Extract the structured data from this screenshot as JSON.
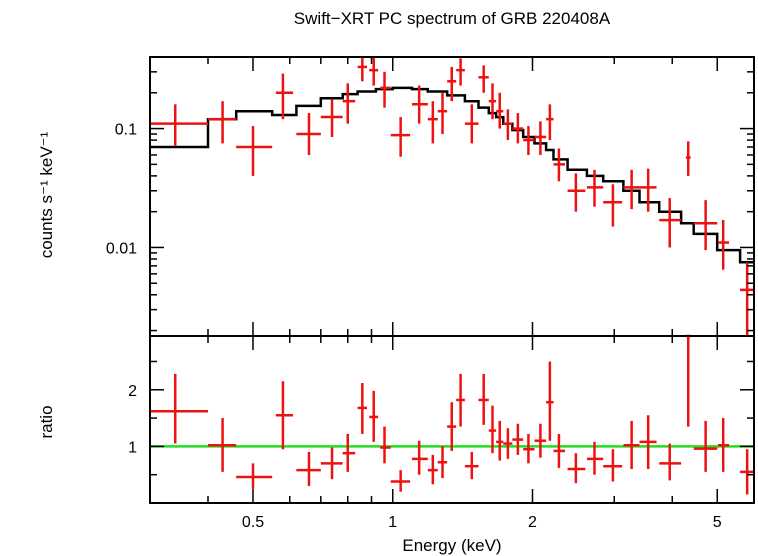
{
  "chart_data": {
    "type": "scatter",
    "title": "Swift−XRT PC spectrum of GRB 220408A",
    "xlabel": "Energy (keV)",
    "x_scale": "log",
    "xlim": [
      0.3,
      6.0
    ],
    "colors": {
      "data": "#ee1111",
      "model": "#000000",
      "unity": "#22dd22"
    },
    "x_ticks": [
      {
        "value": 0.5,
        "label": "0.5"
      },
      {
        "value": 1,
        "label": "1"
      },
      {
        "value": 2,
        "label": "2"
      },
      {
        "value": 5,
        "label": "5"
      }
    ],
    "top_panel": {
      "ylabel": "counts s⁻¹ keV⁻¹",
      "y_scale": "log",
      "ylim": [
        0.0018,
        0.4
      ],
      "y_ticks": [
        {
          "value": 0.1,
          "label": "0.1"
        },
        {
          "value": 0.01,
          "label": "0.01"
        }
      ],
      "data": [
        {
          "x": 0.34,
          "x_lo": 0.3,
          "x_hi": 0.4,
          "y": 0.11,
          "y_lo": 0.072,
          "y_hi": 0.16
        },
        {
          "x": 0.43,
          "x_lo": 0.4,
          "x_hi": 0.46,
          "y": 0.12,
          "y_lo": 0.075,
          "y_hi": 0.17
        },
        {
          "x": 0.5,
          "x_lo": 0.46,
          "x_hi": 0.55,
          "y": 0.07,
          "y_lo": 0.04,
          "y_hi": 0.105
        },
        {
          "x": 0.58,
          "x_lo": 0.56,
          "x_hi": 0.61,
          "y": 0.2,
          "y_lo": 0.12,
          "y_hi": 0.29
        },
        {
          "x": 0.66,
          "x_lo": 0.62,
          "x_hi": 0.7,
          "y": 0.09,
          "y_lo": 0.06,
          "y_hi": 0.135
        },
        {
          "x": 0.74,
          "x_lo": 0.7,
          "x_hi": 0.78,
          "y": 0.125,
          "y_lo": 0.085,
          "y_hi": 0.175
        },
        {
          "x": 0.8,
          "x_lo": 0.78,
          "x_hi": 0.83,
          "y": 0.17,
          "y_lo": 0.11,
          "y_hi": 0.24
        },
        {
          "x": 0.86,
          "x_lo": 0.84,
          "x_hi": 0.88,
          "y": 0.33,
          "y_lo": 0.25,
          "y_hi": 0.4
        },
        {
          "x": 0.91,
          "x_lo": 0.89,
          "x_hi": 0.93,
          "y": 0.31,
          "y_lo": 0.23,
          "y_hi": 0.4
        },
        {
          "x": 0.96,
          "x_lo": 0.94,
          "x_hi": 0.99,
          "y": 0.22,
          "y_lo": 0.15,
          "y_hi": 0.3
        },
        {
          "x": 1.04,
          "x_lo": 0.99,
          "x_hi": 1.09,
          "y": 0.088,
          "y_lo": 0.058,
          "y_hi": 0.125
        },
        {
          "x": 1.14,
          "x_lo": 1.1,
          "x_hi": 1.19,
          "y": 0.16,
          "y_lo": 0.11,
          "y_hi": 0.23
        },
        {
          "x": 1.22,
          "x_lo": 1.19,
          "x_hi": 1.25,
          "y": 0.12,
          "y_lo": 0.075,
          "y_hi": 0.17
        },
        {
          "x": 1.28,
          "x_lo": 1.25,
          "x_hi": 1.31,
          "y": 0.14,
          "y_lo": 0.09,
          "y_hi": 0.2
        },
        {
          "x": 1.34,
          "x_lo": 1.31,
          "x_hi": 1.37,
          "y": 0.25,
          "y_lo": 0.17,
          "y_hi": 0.33
        },
        {
          "x": 1.4,
          "x_lo": 1.37,
          "x_hi": 1.43,
          "y": 0.31,
          "y_lo": 0.23,
          "y_hi": 0.39
        },
        {
          "x": 1.48,
          "x_lo": 1.43,
          "x_hi": 1.53,
          "y": 0.11,
          "y_lo": 0.075,
          "y_hi": 0.16
        },
        {
          "x": 1.57,
          "x_lo": 1.53,
          "x_hi": 1.61,
          "y": 0.27,
          "y_lo": 0.2,
          "y_hi": 0.34
        },
        {
          "x": 1.64,
          "x_lo": 1.61,
          "x_hi": 1.67,
          "y": 0.17,
          "y_lo": 0.12,
          "y_hi": 0.24
        },
        {
          "x": 1.7,
          "x_lo": 1.67,
          "x_hi": 1.73,
          "y": 0.14,
          "y_lo": 0.1,
          "y_hi": 0.2
        },
        {
          "x": 1.77,
          "x_lo": 1.73,
          "x_hi": 1.81,
          "y": 0.11,
          "y_lo": 0.08,
          "y_hi": 0.145
        },
        {
          "x": 1.86,
          "x_lo": 1.81,
          "x_hi": 1.91,
          "y": 0.1,
          "y_lo": 0.075,
          "y_hi": 0.135
        },
        {
          "x": 1.96,
          "x_lo": 1.91,
          "x_hi": 2.02,
          "y": 0.08,
          "y_lo": 0.06,
          "y_hi": 0.105
        },
        {
          "x": 2.08,
          "x_lo": 2.02,
          "x_hi": 2.14,
          "y": 0.085,
          "y_lo": 0.06,
          "y_hi": 0.115
        },
        {
          "x": 2.18,
          "x_lo": 2.14,
          "x_hi": 2.22,
          "y": 0.12,
          "y_lo": 0.08,
          "y_hi": 0.16
        },
        {
          "x": 2.28,
          "x_lo": 2.22,
          "x_hi": 2.35,
          "y": 0.05,
          "y_lo": 0.036,
          "y_hi": 0.068
        },
        {
          "x": 2.48,
          "x_lo": 2.38,
          "x_hi": 2.6,
          "y": 0.03,
          "y_lo": 0.02,
          "y_hi": 0.042
        },
        {
          "x": 2.72,
          "x_lo": 2.62,
          "x_hi": 2.84,
          "y": 0.032,
          "y_lo": 0.022,
          "y_hi": 0.045
        },
        {
          "x": 2.98,
          "x_lo": 2.84,
          "x_hi": 3.12,
          "y": 0.024,
          "y_lo": 0.015,
          "y_hi": 0.034
        },
        {
          "x": 3.27,
          "x_lo": 3.14,
          "x_hi": 3.4,
          "y": 0.032,
          "y_lo": 0.021,
          "y_hi": 0.045
        },
        {
          "x": 3.55,
          "x_lo": 3.4,
          "x_hi": 3.7,
          "y": 0.032,
          "y_lo": 0.02,
          "y_hi": 0.046
        },
        {
          "x": 3.95,
          "x_lo": 3.75,
          "x_hi": 4.18,
          "y": 0.017,
          "y_lo": 0.01,
          "y_hi": 0.026
        },
        {
          "x": 4.33,
          "x_lo": 4.28,
          "x_hi": 4.38,
          "y": 0.057,
          "y_lo": 0.04,
          "y_hi": 0.078
        },
        {
          "x": 4.72,
          "x_lo": 4.45,
          "x_hi": 5.0,
          "y": 0.016,
          "y_lo": 0.0095,
          "y_hi": 0.025
        },
        {
          "x": 5.15,
          "x_lo": 5.02,
          "x_hi": 5.3,
          "y": 0.011,
          "y_lo": 0.0065,
          "y_hi": 0.017
        },
        {
          "x": 5.8,
          "x_lo": 5.6,
          "x_hi": 6.0,
          "y": 0.0044,
          "y_lo": 0.0018,
          "y_hi": 0.0075
        }
      ],
      "model_step": [
        {
          "x_lo": 0.3,
          "x_hi": 0.4,
          "y": 0.07
        },
        {
          "x_lo": 0.4,
          "x_hi": 0.46,
          "y": 0.12
        },
        {
          "x_lo": 0.46,
          "x_hi": 0.55,
          "y": 0.14
        },
        {
          "x_lo": 0.55,
          "x_hi": 0.62,
          "y": 0.13
        },
        {
          "x_lo": 0.62,
          "x_hi": 0.7,
          "y": 0.155
        },
        {
          "x_lo": 0.7,
          "x_hi": 0.78,
          "y": 0.18
        },
        {
          "x_lo": 0.78,
          "x_hi": 0.84,
          "y": 0.195
        },
        {
          "x_lo": 0.84,
          "x_hi": 0.92,
          "y": 0.205
        },
        {
          "x_lo": 0.92,
          "x_hi": 1.0,
          "y": 0.215
        },
        {
          "x_lo": 1.0,
          "x_hi": 1.1,
          "y": 0.22
        },
        {
          "x_lo": 1.1,
          "x_hi": 1.19,
          "y": 0.215
        },
        {
          "x_lo": 1.19,
          "x_hi": 1.31,
          "y": 0.205
        },
        {
          "x_lo": 1.31,
          "x_hi": 1.43,
          "y": 0.19
        },
        {
          "x_lo": 1.43,
          "x_hi": 1.53,
          "y": 0.17
        },
        {
          "x_lo": 1.53,
          "x_hi": 1.61,
          "y": 0.15
        },
        {
          "x_lo": 1.61,
          "x_hi": 1.67,
          "y": 0.135
        },
        {
          "x_lo": 1.67,
          "x_hi": 1.73,
          "y": 0.125
        },
        {
          "x_lo": 1.73,
          "x_hi": 1.81,
          "y": 0.11
        },
        {
          "x_lo": 1.81,
          "x_hi": 1.91,
          "y": 0.097
        },
        {
          "x_lo": 1.91,
          "x_hi": 2.02,
          "y": 0.085
        },
        {
          "x_lo": 2.02,
          "x_hi": 2.14,
          "y": 0.075
        },
        {
          "x_lo": 2.14,
          "x_hi": 2.22,
          "y": 0.066
        },
        {
          "x_lo": 2.22,
          "x_hi": 2.38,
          "y": 0.055
        },
        {
          "x_lo": 2.38,
          "x_hi": 2.62,
          "y": 0.045
        },
        {
          "x_lo": 2.62,
          "x_hi": 2.84,
          "y": 0.04
        },
        {
          "x_lo": 2.84,
          "x_hi": 3.14,
          "y": 0.036
        },
        {
          "x_lo": 3.14,
          "x_hi": 3.4,
          "y": 0.03
        },
        {
          "x_lo": 3.4,
          "x_hi": 3.75,
          "y": 0.024
        },
        {
          "x_lo": 3.75,
          "x_hi": 4.18,
          "y": 0.02
        },
        {
          "x_lo": 4.18,
          "x_hi": 4.45,
          "y": 0.016
        },
        {
          "x_lo": 4.45,
          "x_hi": 5.0,
          "y": 0.013
        },
        {
          "x_lo": 5.0,
          "x_hi": 5.6,
          "y": 0.0095
        },
        {
          "x_lo": 5.6,
          "x_hi": 6.0,
          "y": 0.0075
        }
      ]
    },
    "bottom_panel": {
      "ylabel": "ratio",
      "ylim": [
        0.0,
        2.95
      ],
      "y_ticks": [
        {
          "value": 1,
          "label": "1"
        },
        {
          "value": 2,
          "label": "2"
        }
      ],
      "unity_line": 1,
      "data": [
        {
          "x": 0.34,
          "x_lo": 0.3,
          "x_hi": 0.4,
          "y": 1.62,
          "y_lo": 1.05,
          "y_hi": 2.28
        },
        {
          "x": 0.43,
          "x_lo": 0.4,
          "x_hi": 0.46,
          "y": 1.02,
          "y_lo": 0.55,
          "y_hi": 1.5
        },
        {
          "x": 0.5,
          "x_lo": 0.46,
          "x_hi": 0.55,
          "y": 0.46,
          "y_lo": 0.25,
          "y_hi": 0.7
        },
        {
          "x": 0.58,
          "x_lo": 0.56,
          "x_hi": 0.61,
          "y": 1.55,
          "y_lo": 0.95,
          "y_hi": 2.15
        },
        {
          "x": 0.66,
          "x_lo": 0.62,
          "x_hi": 0.7,
          "y": 0.58,
          "y_lo": 0.3,
          "y_hi": 0.9
        },
        {
          "x": 0.74,
          "x_lo": 0.7,
          "x_hi": 0.78,
          "y": 0.7,
          "y_lo": 0.42,
          "y_hi": 0.98
        },
        {
          "x": 0.8,
          "x_lo": 0.78,
          "x_hi": 0.83,
          "y": 0.88,
          "y_lo": 0.55,
          "y_hi": 1.22
        },
        {
          "x": 0.86,
          "x_lo": 0.84,
          "x_hi": 0.88,
          "y": 1.68,
          "y_lo": 1.22,
          "y_hi": 2.12
        },
        {
          "x": 0.91,
          "x_lo": 0.89,
          "x_hi": 0.93,
          "y": 1.52,
          "y_lo": 1.08,
          "y_hi": 1.98
        },
        {
          "x": 0.96,
          "x_lo": 0.94,
          "x_hi": 0.99,
          "y": 0.98,
          "y_lo": 0.7,
          "y_hi": 1.35
        },
        {
          "x": 1.04,
          "x_lo": 0.99,
          "x_hi": 1.09,
          "y": 0.38,
          "y_lo": 0.2,
          "y_hi": 0.58
        },
        {
          "x": 1.14,
          "x_lo": 1.1,
          "x_hi": 1.19,
          "y": 0.78,
          "y_lo": 0.5,
          "y_hi": 1.1
        },
        {
          "x": 1.22,
          "x_lo": 1.19,
          "x_hi": 1.25,
          "y": 0.58,
          "y_lo": 0.33,
          "y_hi": 0.85
        },
        {
          "x": 1.28,
          "x_lo": 1.25,
          "x_hi": 1.31,
          "y": 0.72,
          "y_lo": 0.44,
          "y_hi": 1.0
        },
        {
          "x": 1.34,
          "x_lo": 1.31,
          "x_hi": 1.37,
          "y": 1.35,
          "y_lo": 0.92,
          "y_hi": 1.78
        },
        {
          "x": 1.4,
          "x_lo": 1.37,
          "x_hi": 1.43,
          "y": 1.82,
          "y_lo": 1.35,
          "y_hi": 2.28
        },
        {
          "x": 1.48,
          "x_lo": 1.43,
          "x_hi": 1.53,
          "y": 0.65,
          "y_lo": 0.42,
          "y_hi": 0.9
        },
        {
          "x": 1.57,
          "x_lo": 1.53,
          "x_hi": 1.61,
          "y": 1.82,
          "y_lo": 1.38,
          "y_hi": 2.28
        },
        {
          "x": 1.64,
          "x_lo": 1.61,
          "x_hi": 1.67,
          "y": 1.28,
          "y_lo": 0.88,
          "y_hi": 1.72
        },
        {
          "x": 1.7,
          "x_lo": 1.67,
          "x_hi": 1.73,
          "y": 1.08,
          "y_lo": 0.75,
          "y_hi": 1.45
        },
        {
          "x": 1.77,
          "x_lo": 1.73,
          "x_hi": 1.81,
          "y": 1.05,
          "y_lo": 0.78,
          "y_hi": 1.32
        },
        {
          "x": 1.86,
          "x_lo": 1.81,
          "x_hi": 1.91,
          "y": 1.12,
          "y_lo": 0.85,
          "y_hi": 1.4
        },
        {
          "x": 1.96,
          "x_lo": 1.91,
          "x_hi": 2.02,
          "y": 0.95,
          "y_lo": 0.7,
          "y_hi": 1.22
        },
        {
          "x": 2.08,
          "x_lo": 2.02,
          "x_hi": 2.14,
          "y": 1.1,
          "y_lo": 0.8,
          "y_hi": 1.4
        },
        {
          "x": 2.18,
          "x_lo": 2.14,
          "x_hi": 2.22,
          "y": 1.78,
          "y_lo": 1.1,
          "y_hi": 2.5
        },
        {
          "x": 2.28,
          "x_lo": 2.22,
          "x_hi": 2.35,
          "y": 0.92,
          "y_lo": 0.62,
          "y_hi": 1.22
        },
        {
          "x": 2.48,
          "x_lo": 2.38,
          "x_hi": 2.6,
          "y": 0.6,
          "y_lo": 0.35,
          "y_hi": 0.88
        },
        {
          "x": 2.72,
          "x_lo": 2.62,
          "x_hi": 2.84,
          "y": 0.78,
          "y_lo": 0.5,
          "y_hi": 1.08
        },
        {
          "x": 2.98,
          "x_lo": 2.84,
          "x_hi": 3.12,
          "y": 0.65,
          "y_lo": 0.38,
          "y_hi": 0.95
        },
        {
          "x": 3.27,
          "x_lo": 3.14,
          "x_hi": 3.4,
          "y": 1.02,
          "y_lo": 0.6,
          "y_hi": 1.45
        },
        {
          "x": 3.55,
          "x_lo": 3.4,
          "x_hi": 3.7,
          "y": 1.08,
          "y_lo": 0.6,
          "y_hi": 1.55
        },
        {
          "x": 3.95,
          "x_lo": 3.75,
          "x_hi": 4.18,
          "y": 0.7,
          "y_lo": 0.4,
          "y_hi": 1.05
        },
        {
          "x": 4.33,
          "x_lo": 4.28,
          "x_hi": 4.38,
          "y": 2.95,
          "y_lo": 1.35,
          "y_hi": 2.95
        },
        {
          "x": 4.72,
          "x_lo": 4.45,
          "x_hi": 5.0,
          "y": 0.96,
          "y_lo": 0.55,
          "y_hi": 1.45
        },
        {
          "x": 5.15,
          "x_lo": 5.02,
          "x_hi": 5.3,
          "y": 1.02,
          "y_lo": 0.55,
          "y_hi": 1.5
        },
        {
          "x": 5.8,
          "x_lo": 5.6,
          "x_hi": 6.0,
          "y": 0.55,
          "y_lo": 0.15,
          "y_hi": 0.95
        }
      ]
    }
  }
}
